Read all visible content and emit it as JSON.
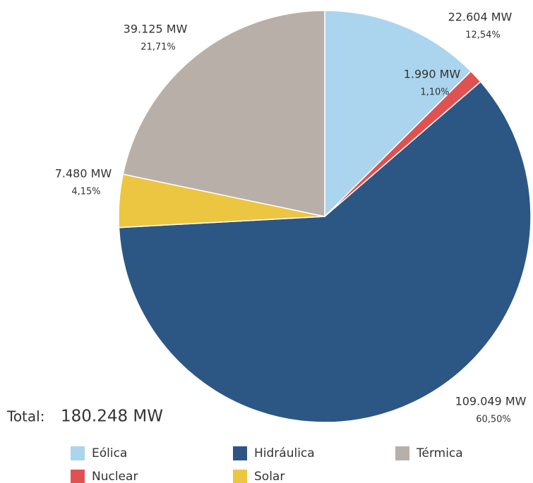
{
  "chart_data": {
    "type": "pie",
    "categories": [
      "Eólica",
      "Nuclear",
      "Hidráulica",
      "Solar",
      "Térmica"
    ],
    "values": [
      22604,
      1990,
      109049,
      7480,
      39125
    ],
    "value_labels": [
      "22.604 MW",
      "1.990 MW",
      "109.049 MW",
      "7.480 MW",
      "39.125 MW"
    ],
    "percents": [
      12.54,
      1.1,
      60.5,
      4.15,
      21.71
    ],
    "percent_labels": [
      "12,54%",
      "1,10%",
      "60,50%",
      "4,15%",
      "21,71%"
    ],
    "colors": [
      "#abd4ee",
      "#e05252",
      "#2c5784",
      "#ecc640",
      "#b9afa9"
    ],
    "total_prefix": "Total:",
    "total": "180.248 MW"
  }
}
